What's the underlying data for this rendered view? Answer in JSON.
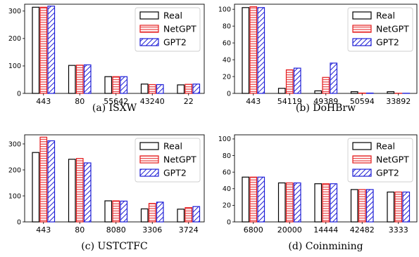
{
  "colors": {
    "Real": "#000000",
    "NetGPT": "#e41a1c",
    "GPT2": "#1f1fd6"
  },
  "chart_data": [
    {
      "type": "bar",
      "caption": "(a) ISXW",
      "categories": [
        "443",
        "80",
        "55642",
        "43240",
        "22"
      ],
      "series": [
        {
          "name": "Real",
          "pattern": "none",
          "values": [
            314,
            102,
            61,
            34,
            31
          ]
        },
        {
          "name": "NetGPT",
          "pattern": "horizontal",
          "values": [
            314,
            103,
            61,
            32,
            33
          ]
        },
        {
          "name": "GPT2",
          "pattern": "diagonal",
          "values": [
            318,
            104,
            61,
            32,
            34
          ]
        }
      ],
      "ylim": [
        0,
        325
      ],
      "yticks": [
        0,
        100,
        200,
        300
      ],
      "legend": "top-right"
    },
    {
      "type": "bar",
      "caption": "(b) DoHBrw",
      "categories": [
        "443",
        "54119",
        "49389",
        "50594",
        "33892"
      ],
      "series": [
        {
          "name": "Real",
          "pattern": "none",
          "values": [
            102,
            6,
            3,
            2,
            2
          ]
        },
        {
          "name": "NetGPT",
          "pattern": "horizontal",
          "values": [
            103,
            28,
            19,
            0.4,
            0.2
          ]
        },
        {
          "name": "GPT2",
          "pattern": "diagonal",
          "values": [
            102,
            30,
            36,
            0.4,
            0.2
          ]
        }
      ],
      "ylim": [
        0,
        106
      ],
      "yticks": [
        0,
        20,
        40,
        60,
        80,
        100
      ],
      "legend": "top-right"
    },
    {
      "type": "bar",
      "caption": "(c) USTCTFC",
      "categories": [
        "443",
        "80",
        "8080",
        "3306",
        "3724"
      ],
      "series": [
        {
          "name": "Real",
          "pattern": "none",
          "values": [
            267,
            241,
            81,
            50,
            49
          ]
        },
        {
          "name": "NetGPT",
          "pattern": "horizontal",
          "values": [
            326,
            244,
            81,
            71,
            55
          ]
        },
        {
          "name": "GPT2",
          "pattern": "diagonal",
          "values": [
            312,
            227,
            80,
            76,
            59
          ]
        }
      ],
      "ylim": [
        0,
        335
      ],
      "yticks": [
        0,
        100,
        200,
        300
      ],
      "legend": "top-right"
    },
    {
      "type": "bar",
      "caption": "(d) Coinmining",
      "categories": [
        "6800",
        "20000",
        "14444",
        "42482",
        "3333"
      ],
      "series": [
        {
          "name": "Real",
          "pattern": "none",
          "values": [
            54,
            47,
            46,
            39,
            36
          ]
        },
        {
          "name": "NetGPT",
          "pattern": "horizontal",
          "values": [
            54,
            47,
            46,
            39,
            36
          ]
        },
        {
          "name": "GPT2",
          "pattern": "diagonal",
          "values": [
            54,
            47,
            46,
            39,
            36
          ]
        }
      ],
      "ylim": [
        0,
        105
      ],
      "yticks": [
        0,
        20,
        40,
        60,
        80,
        100
      ],
      "legend": "top-right"
    }
  ]
}
